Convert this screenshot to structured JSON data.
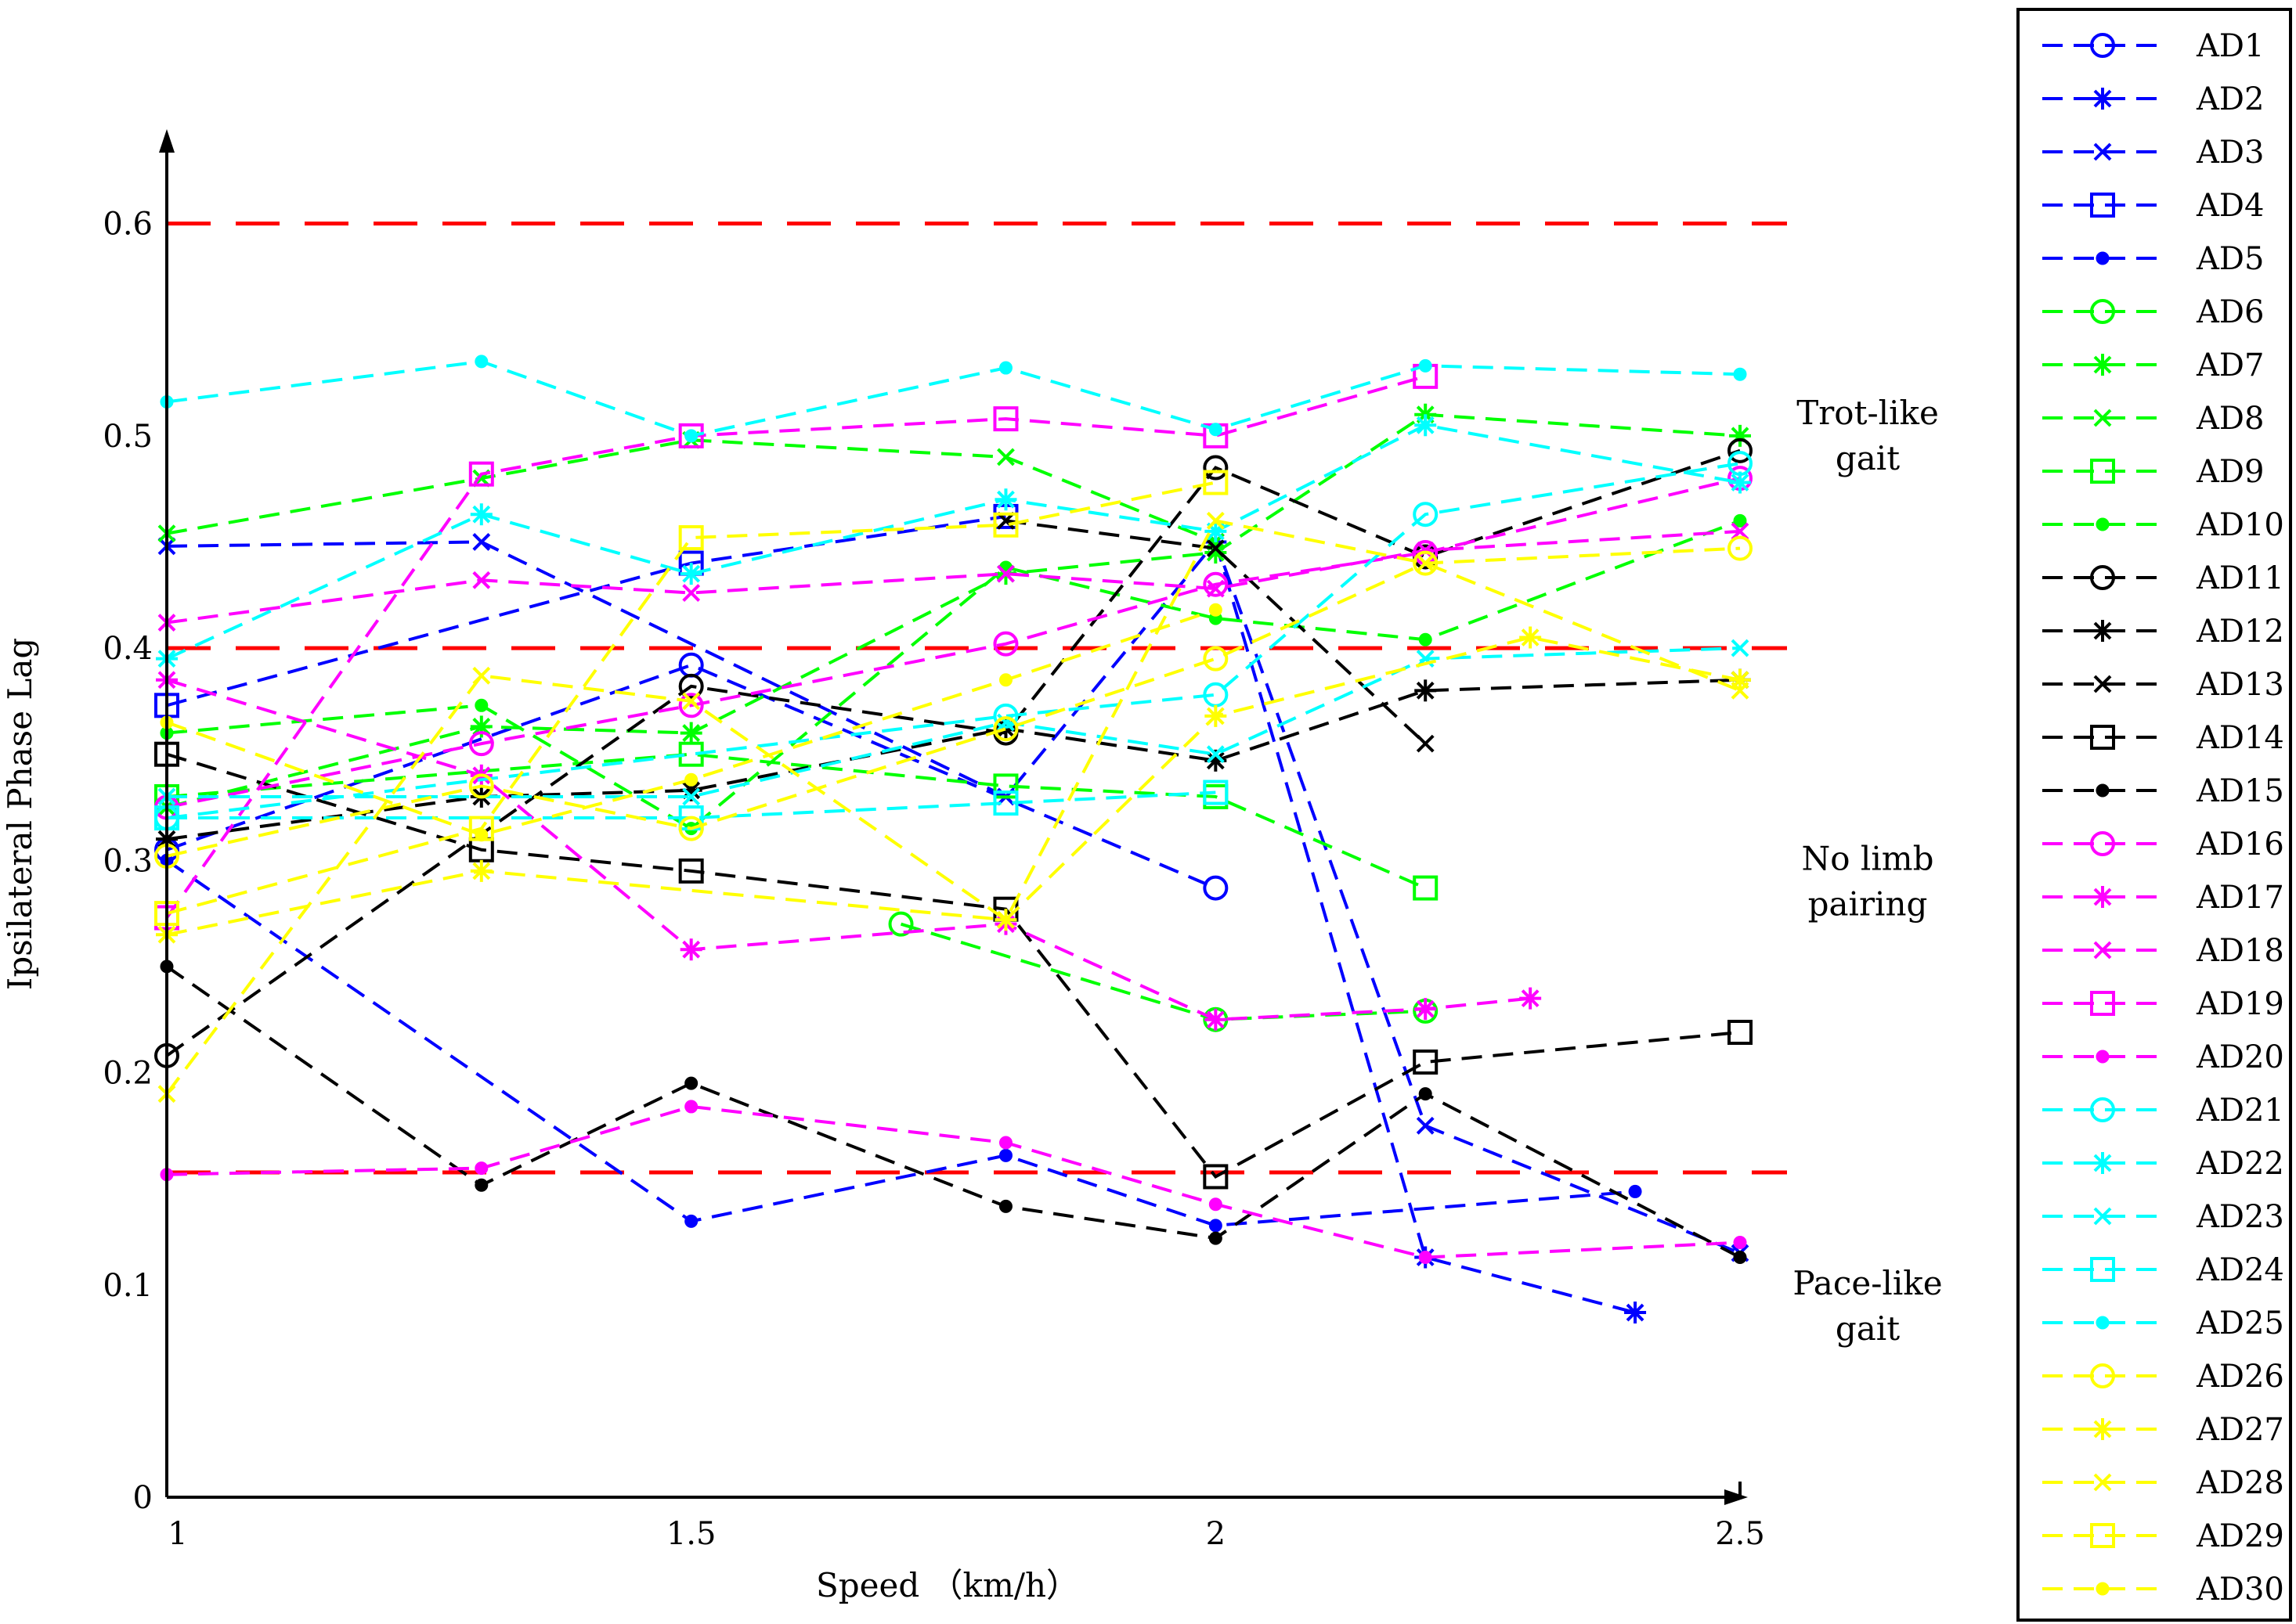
{
  "chart_data": {
    "type": "line",
    "title": "",
    "xlabel": "Speed （km/h）",
    "ylabel": "Ipsilateral Phase Lag",
    "xlim": [
      1,
      2.5
    ],
    "ylim": [
      0,
      0.65
    ],
    "xticks": [
      1,
      1.5,
      2,
      2.5
    ],
    "yticks": [
      0,
      0.1,
      0.2,
      0.3,
      0.4,
      0.5,
      0.6
    ],
    "xtick_labels": [
      "1",
      "1.5",
      "2",
      "2.5"
    ],
    "ytick_labels": [
      "0",
      "0.1",
      "0.2",
      "0.3",
      "0.4",
      "0.5",
      "0.6"
    ],
    "grid": false,
    "legend_position": "right",
    "thresholds": [
      {
        "y": 0.6,
        "color": "#ff0000",
        "style": "dashed"
      },
      {
        "y": 0.4,
        "color": "#ff0000",
        "style": "dashed"
      },
      {
        "y": 0.153,
        "color": "#ff0000",
        "style": "dashed"
      }
    ],
    "annotations": [
      {
        "lines": [
          "Trot-like",
          "gait"
        ],
        "at": [
          2.62,
          0.5
        ]
      },
      {
        "lines": [
          "No limb",
          "pairing"
        ],
        "at": [
          2.62,
          0.29
        ]
      },
      {
        "lines": [
          "Pace-like",
          "gait"
        ],
        "at": [
          2.62,
          0.09
        ]
      }
    ],
    "series": [
      {
        "name": "AD1",
        "color": "#0000ff",
        "marker": "circle",
        "x": [
          1,
          1.5,
          2
        ],
        "y": [
          0.305,
          0.392,
          0.287
        ]
      },
      {
        "name": "AD2",
        "color": "#0000ff",
        "marker": "star",
        "x": [
          2,
          2.2,
          2.4
        ],
        "y": [
          0.45,
          0.113,
          0.087
        ]
      },
      {
        "name": "AD3",
        "color": "#0000ff",
        "marker": "x",
        "x": [
          1,
          1.3,
          1.8,
          2,
          2.2,
          2.5
        ],
        "y": [
          0.448,
          0.45,
          0.33,
          0.45,
          0.175,
          0.115
        ]
      },
      {
        "name": "AD4",
        "color": "#0000ff",
        "marker": "square",
        "x": [
          1,
          1.5,
          1.8
        ],
        "y": [
          0.373,
          0.44,
          0.462
        ]
      },
      {
        "name": "AD5",
        "color": "#0000ff",
        "marker": "dot",
        "x": [
          1,
          1.5,
          1.8,
          2,
          2.4
        ],
        "y": [
          0.3,
          0.13,
          0.161,
          0.128,
          0.144
        ]
      },
      {
        "name": "AD6",
        "color": "#00ff00",
        "marker": "circle",
        "x": [
          1.7,
          2,
          2.2
        ],
        "y": [
          0.27,
          0.225,
          0.229
        ]
      },
      {
        "name": "AD7",
        "color": "#00ff00",
        "marker": "star",
        "x": [
          1,
          1.3,
          1.5,
          1.8,
          2,
          2.2,
          2.5
        ],
        "y": [
          0.325,
          0.363,
          0.36,
          0.435,
          0.445,
          0.51,
          0.5
        ]
      },
      {
        "name": "AD8",
        "color": "#00ff00",
        "marker": "x",
        "x": [
          1,
          1.3,
          1.5,
          1.8,
          2
        ],
        "y": [
          0.454,
          0.48,
          0.498,
          0.49,
          0.45
        ]
      },
      {
        "name": "AD9",
        "color": "#00ff00",
        "marker": "square",
        "x": [
          1,
          1.5,
          1.8,
          2,
          2.2
        ],
        "y": [
          0.33,
          0.35,
          0.335,
          0.33,
          0.287
        ]
      },
      {
        "name": "AD10",
        "color": "#00ff00",
        "marker": "dot",
        "x": [
          1,
          1.3,
          1.5,
          1.8,
          2,
          2.2,
          2.5
        ],
        "y": [
          0.36,
          0.373,
          0.315,
          0.438,
          0.414,
          0.404,
          0.46
        ]
      },
      {
        "name": "AD11",
        "color": "#000000",
        "marker": "circle",
        "x": [
          1,
          1.5,
          1.8,
          2,
          2.2,
          2.5
        ],
        "y": [
          0.208,
          0.382,
          0.36,
          0.485,
          0.443,
          0.493
        ]
      },
      {
        "name": "AD12",
        "color": "#000000",
        "marker": "star",
        "x": [
          1,
          1.3,
          1.5,
          1.8,
          2,
          2.2,
          2.5
        ],
        "y": [
          0.31,
          0.33,
          0.333,
          0.362,
          0.347,
          0.38,
          0.385
        ]
      },
      {
        "name": "AD13",
        "color": "#000000",
        "marker": "x",
        "x": [
          1.8,
          2,
          2.2
        ],
        "y": [
          0.46,
          0.447,
          0.355
        ]
      },
      {
        "name": "AD14",
        "color": "#000000",
        "marker": "square",
        "x": [
          1,
          1.3,
          1.5,
          1.8,
          2,
          2.2,
          2.5
        ],
        "y": [
          0.35,
          0.305,
          0.295,
          0.277,
          0.151,
          0.205,
          0.219
        ]
      },
      {
        "name": "AD15",
        "color": "#000000",
        "marker": "dot",
        "x": [
          1,
          1.3,
          1.5,
          1.8,
          2,
          2.2,
          2.5
        ],
        "y": [
          0.25,
          0.147,
          0.195,
          0.137,
          0.122,
          0.19,
          0.113
        ]
      },
      {
        "name": "AD16",
        "color": "#ff00ff",
        "marker": "circle",
        "x": [
          1,
          1.3,
          1.5,
          1.8,
          2,
          2.2,
          2.5
        ],
        "y": [
          0.325,
          0.355,
          0.373,
          0.402,
          0.43,
          0.445,
          0.48
        ]
      },
      {
        "name": "AD17",
        "color": "#ff00ff",
        "marker": "star",
        "x": [
          1,
          1.3,
          1.5,
          1.8,
          2,
          2.2,
          2.3
        ],
        "y": [
          0.385,
          0.34,
          0.258,
          0.27,
          0.225,
          0.23,
          0.235
        ]
      },
      {
        "name": "AD18",
        "color": "#ff00ff",
        "marker": "x",
        "x": [
          1,
          1.3,
          1.5,
          1.8,
          2,
          2.2,
          2.5
        ],
        "y": [
          0.412,
          0.432,
          0.426,
          0.435,
          0.428,
          0.446,
          0.455
        ]
      },
      {
        "name": "AD19",
        "color": "#ff00ff",
        "marker": "square",
        "x": [
          1,
          1.3,
          1.5,
          1.8,
          2,
          2.2
        ],
        "y": [
          0.273,
          0.482,
          0.5,
          0.508,
          0.5,
          0.528
        ]
      },
      {
        "name": "AD20",
        "color": "#ff00ff",
        "marker": "dot",
        "x": [
          1,
          1.3,
          1.5,
          1.8,
          2,
          2.2,
          2.5
        ],
        "y": [
          0.152,
          0.155,
          0.184,
          0.167,
          0.138,
          0.113,
          0.12
        ]
      },
      {
        "name": "AD21",
        "color": "#00ffff",
        "marker": "circle",
        "x": [
          1,
          1.8,
          2,
          2.2,
          2.5
        ],
        "y": [
          0.32,
          0.368,
          0.378,
          0.463,
          0.487
        ]
      },
      {
        "name": "AD22",
        "color": "#00ffff",
        "marker": "star",
        "x": [
          1,
          1.3,
          1.5,
          1.8,
          2,
          2.2,
          2.5
        ],
        "y": [
          0.395,
          0.463,
          0.435,
          0.47,
          0.455,
          0.505,
          0.478
        ]
      },
      {
        "name": "AD23",
        "color": "#00ffff",
        "marker": "x",
        "x": [
          1,
          1.5,
          1.8,
          2,
          2.2,
          2.5
        ],
        "y": [
          0.33,
          0.33,
          0.365,
          0.35,
          0.395,
          0.4
        ]
      },
      {
        "name": "AD24",
        "color": "#00ffff",
        "marker": "square",
        "x": [
          1,
          1.5,
          1.8,
          2
        ],
        "y": [
          0.32,
          0.32,
          0.327,
          0.332
        ]
      },
      {
        "name": "AD25",
        "color": "#00ffff",
        "marker": "dot",
        "x": [
          1,
          1.3,
          1.5,
          1.8,
          2,
          2.2,
          2.5
        ],
        "y": [
          0.516,
          0.535,
          0.5,
          0.532,
          0.503,
          0.533,
          0.529
        ]
      },
      {
        "name": "AD26",
        "color": "#ffff00",
        "marker": "circle",
        "x": [
          1,
          1.3,
          1.5,
          1.8,
          2,
          2.2,
          2.5
        ],
        "y": [
          0.302,
          0.335,
          0.315,
          0.362,
          0.395,
          0.44,
          0.447
        ]
      },
      {
        "name": "AD27",
        "color": "#ffff00",
        "marker": "star",
        "x": [
          1,
          1.3,
          1.8,
          2,
          2.3,
          2.5
        ],
        "y": [
          0.265,
          0.295,
          0.272,
          0.368,
          0.405,
          0.385
        ]
      },
      {
        "name": "AD28",
        "color": "#ffff00",
        "marker": "x",
        "x": [
          1,
          1.3,
          1.5,
          1.8,
          2,
          2.2,
          2.5
        ],
        "y": [
          0.19,
          0.387,
          0.375,
          0.272,
          0.46,
          0.44,
          0.38
        ]
      },
      {
        "name": "AD29",
        "color": "#ffff00",
        "marker": "square",
        "x": [
          1,
          1.3,
          1.5,
          1.8,
          2
        ],
        "y": [
          0.275,
          0.315,
          0.452,
          0.458,
          0.478
        ]
      },
      {
        "name": "AD30",
        "color": "#ffff00",
        "marker": "dot",
        "x": [
          1,
          1.3,
          1.5,
          1.8,
          2
        ],
        "y": [
          0.365,
          0.312,
          0.338,
          0.385,
          0.418
        ]
      }
    ]
  }
}
